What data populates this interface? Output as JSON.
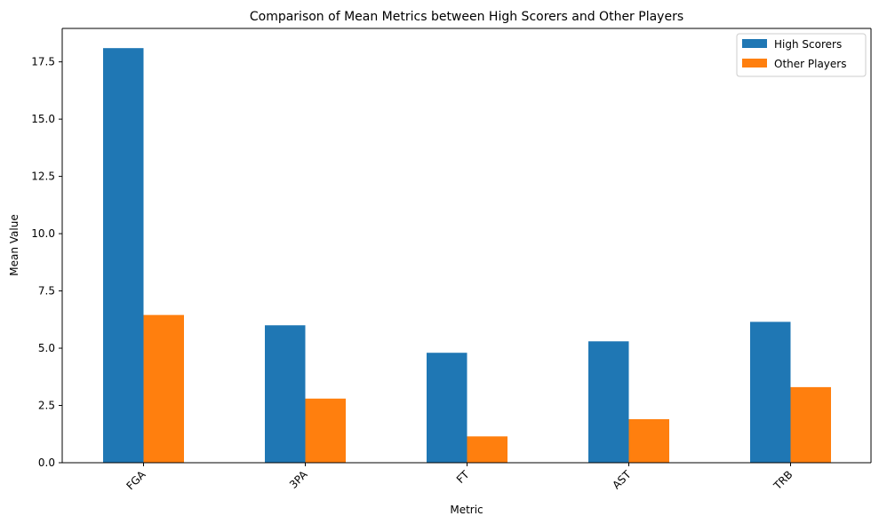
{
  "chart_data": {
    "type": "bar",
    "title": "Comparison of Mean Metrics between High Scorers and Other Players",
    "xlabel": "Metric",
    "ylabel": "Mean Value",
    "categories": [
      "FGA",
      "3PA",
      "FT",
      "AST",
      "TRB"
    ],
    "series": [
      {
        "name": "High Scorers",
        "color": "#1f77b4",
        "values": [
          18.1,
          6.0,
          4.8,
          5.3,
          6.15
        ]
      },
      {
        "name": "Other Players",
        "color": "#ff7f0e",
        "values": [
          6.45,
          2.8,
          1.15,
          1.9,
          3.3
        ]
      }
    ],
    "ylim": [
      0,
      18.96
    ],
    "yticks": [
      "0.0",
      "2.5",
      "5.0",
      "7.5",
      "10.0",
      "12.5",
      "15.0",
      "17.5"
    ],
    "ytick_values": [
      0,
      2.5,
      5.0,
      7.5,
      10.0,
      12.5,
      15.0,
      17.5
    ],
    "grid": false,
    "legend_position": "top-right",
    "xtick_rotation": 45
  }
}
